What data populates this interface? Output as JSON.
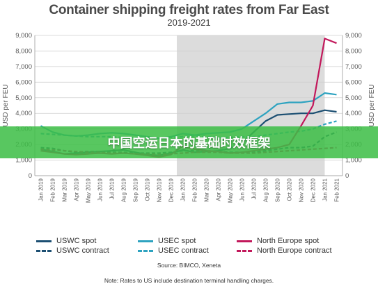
{
  "banner_text": "中国空运日本的基础时效框架",
  "source": "Source: BIMCO, Xeneta",
  "note": "Note: Rates to US include destination terminal handling charges.",
  "chart_data": {
    "type": "line",
    "title": "Container shipping freight rates from Far East",
    "subtitle": "2019-2021",
    "ylabel": "USD per FEU",
    "xlabel": "",
    "ylim": [
      0,
      9000
    ],
    "yticks": [
      0,
      1000,
      2000,
      3000,
      4000,
      5000,
      6000,
      7000,
      8000,
      9000
    ],
    "ytick_labels": [
      "0",
      "1,000",
      "2,000",
      "3,000",
      "4,000",
      "5,000",
      "6,000",
      "7,000",
      "8,000",
      "9,000"
    ],
    "x_labels": [
      "Jan 2019",
      "Feb 2019",
      "Mar 2019",
      "Apr 2019",
      "May 2019",
      "Jun 2019",
      "Jul 2019",
      "Aug 2019",
      "Sep 2019",
      "Oct 2019",
      "Nov 2019",
      "Dec 2019",
      "Jan 2020",
      "Feb 2020",
      "Mar 2020",
      "Apr 2020",
      "May 2020",
      "Jun 2020",
      "Jul 2020",
      "Aug 2020",
      "Sep 2020",
      "Oct 2020",
      "Nov 2020",
      "Dec 2020",
      "Jan 2021",
      "Feb 2021"
    ],
    "shaded_period": {
      "from": "Jan 2020",
      "to": "Jan 2021"
    },
    "grid": true,
    "legend_position": "bottom",
    "series": [
      {
        "name": "USWC spot",
        "color": "#1c4f72",
        "style": "solid",
        "values": [
          1700,
          1550,
          1400,
          1450,
          1500,
          1550,
          1600,
          1650,
          1500,
          1350,
          1300,
          1450,
          1650,
          1500,
          1550,
          1600,
          1750,
          2100,
          2800,
          3500,
          3900,
          3950,
          4000,
          4000,
          4200,
          4100
        ]
      },
      {
        "name": "USWC contract",
        "color": "#1c4f72",
        "style": "dashed",
        "values": [
          1800,
          1750,
          1600,
          1500,
          1550,
          1550,
          1500,
          1500,
          1450,
          1450,
          1450,
          1500,
          1600,
          1600,
          1600,
          1550,
          1500,
          1500,
          1500,
          1600,
          1700,
          1800,
          1800,
          1900,
          2500,
          2800
        ]
      },
      {
        "name": "USEC spot",
        "color": "#2ea3c0",
        "style": "solid",
        "values": [
          3200,
          2800,
          2600,
          2550,
          2600,
          2700,
          2750,
          2700,
          2600,
          2500,
          2400,
          2500,
          2700,
          2600,
          2700,
          2750,
          2800,
          3000,
          3500,
          4000,
          4600,
          4700,
          4700,
          4800,
          5300,
          5200
        ]
      },
      {
        "name": "USEC contract",
        "color": "#2ea3c0",
        "style": "dashed",
        "values": [
          2700,
          2650,
          2600,
          2550,
          2500,
          2500,
          2500,
          2450,
          2450,
          2400,
          2400,
          2450,
          2500,
          2550,
          2500,
          2450,
          2450,
          2500,
          2500,
          2600,
          2700,
          2800,
          2850,
          3000,
          3300,
          3500
        ]
      },
      {
        "name": "North Europe spot",
        "color": "#c2185b",
        "style": "solid",
        "values": [
          1600,
          1500,
          1400,
          1350,
          1400,
          1450,
          1400,
          1450,
          1400,
          1300,
          1200,
          1350,
          1900,
          1700,
          1600,
          1550,
          1450,
          1500,
          1600,
          1700,
          1800,
          2000,
          3200,
          4500,
          8800,
          8500
        ]
      },
      {
        "name": "North Europe contract",
        "color": "#c2185b",
        "style": "dashed",
        "values": [
          1700,
          1650,
          1600,
          1550,
          1500,
          1500,
          1450,
          1450,
          1400,
          1400,
          1350,
          1400,
          1450,
          1500,
          1500,
          1500,
          1450,
          1450,
          1450,
          1500,
          1550,
          1600,
          1650,
          1700,
          1750,
          1800
        ]
      }
    ]
  }
}
